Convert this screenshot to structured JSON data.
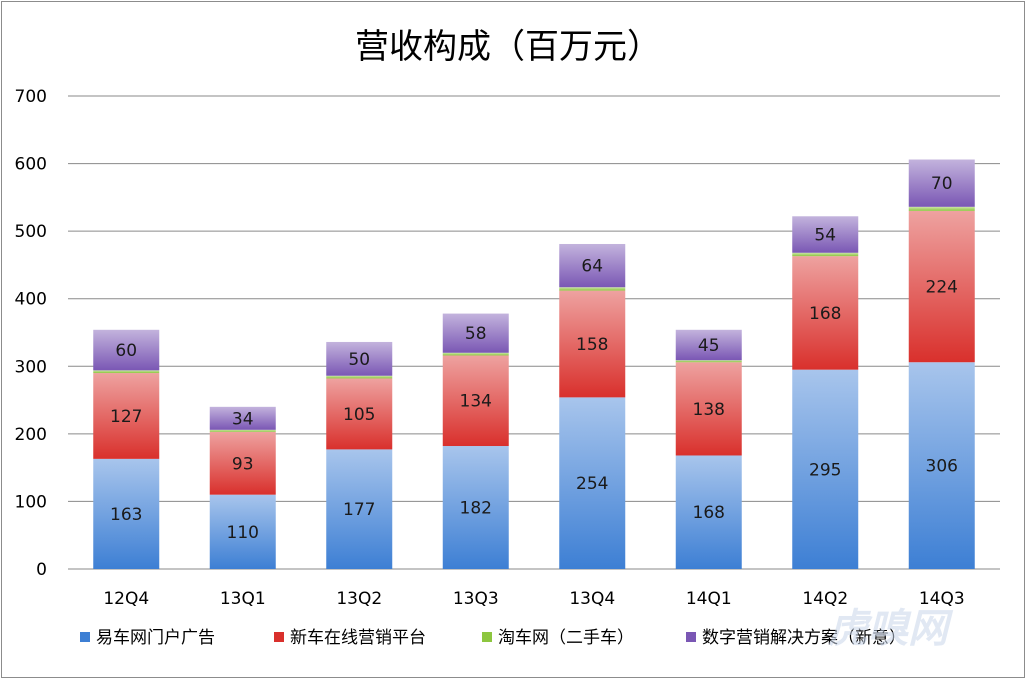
{
  "chart_data": {
    "type": "bar",
    "stacked": true,
    "title": "营收构成（百万元）",
    "categories": [
      "12Q4",
      "13Q1",
      "13Q2",
      "13Q3",
      "13Q4",
      "14Q1",
      "14Q2",
      "14Q3"
    ],
    "series": [
      {
        "name": "易车网门户广告",
        "color": "#3d7fd4",
        "values": [
          163,
          110,
          177,
          182,
          254,
          168,
          295,
          306
        ],
        "show_labels": true
      },
      {
        "name": "新车在线营销平台",
        "color": "#d9302c",
        "values": [
          127,
          93,
          105,
          134,
          158,
          138,
          168,
          224
        ],
        "show_labels": true
      },
      {
        "name": "淘车网（二手车）",
        "color": "#8dc63f",
        "values": [
          4,
          3,
          4,
          4,
          5,
          3,
          5,
          6
        ],
        "show_labels": false
      },
      {
        "name": "数字营销解决方案（新意）",
        "color": "#7a57b4",
        "values": [
          60,
          34,
          50,
          58,
          64,
          45,
          54,
          70
        ],
        "show_labels": true
      }
    ],
    "ylim": [
      0,
      700
    ],
    "yticks": [
      0,
      100,
      200,
      300,
      400,
      500,
      600,
      700
    ],
    "grid": true,
    "legend_position": "bottom"
  },
  "watermark": {
    "text": "虎嗅网"
  }
}
